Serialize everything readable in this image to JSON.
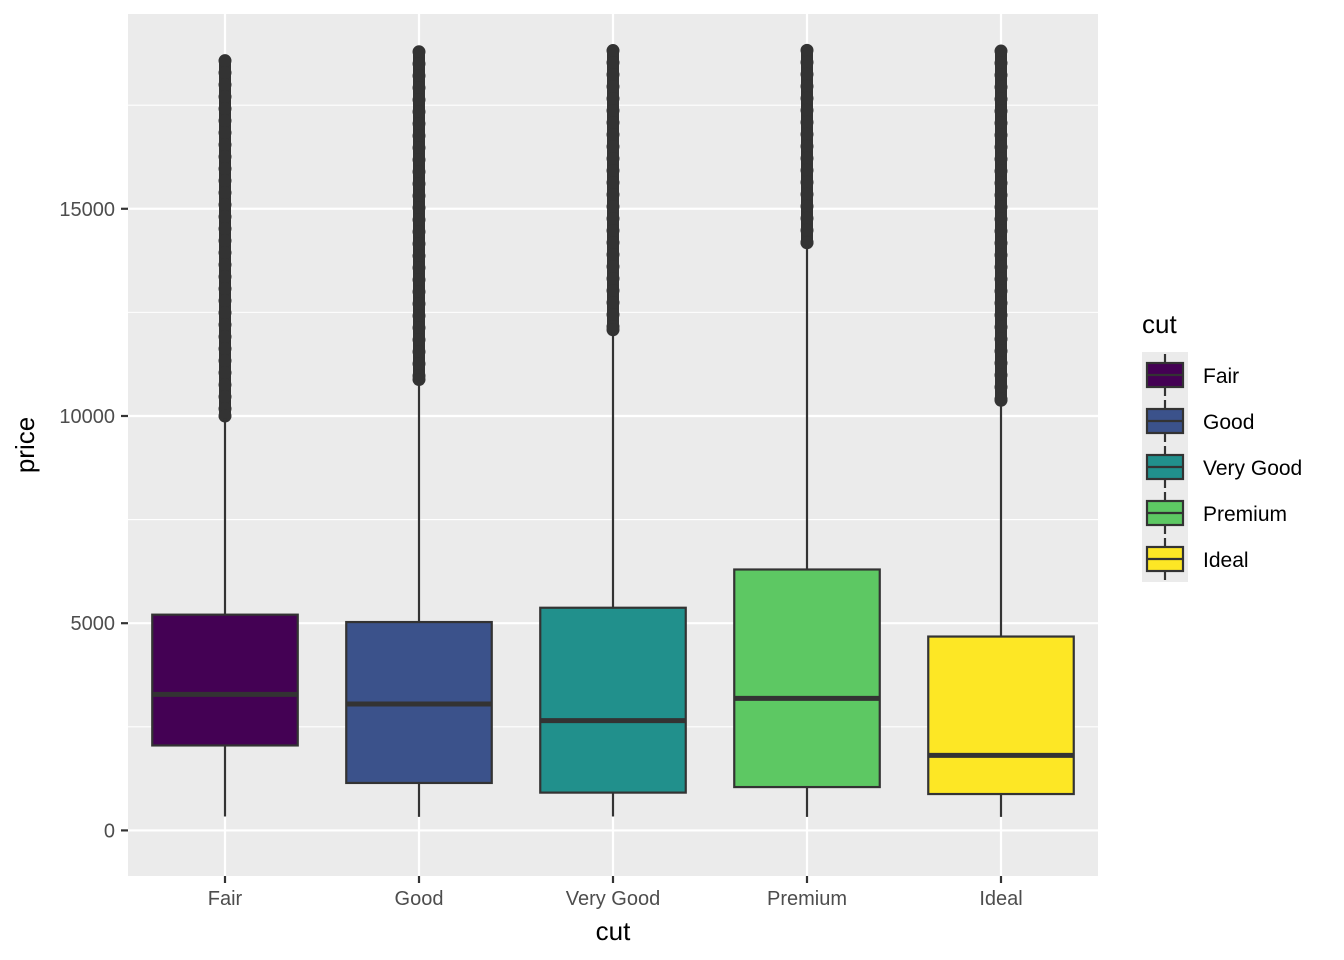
{
  "chart_data": {
    "type": "boxplot",
    "xlabel": "cut",
    "ylabel": "price",
    "ylim": [
      -1100,
      19700
    ],
    "yticks": [
      0,
      5000,
      10000,
      15000
    ],
    "ytick_labels": [
      "0",
      "5000",
      "10000",
      "15000"
    ],
    "grid": true,
    "legend": {
      "title": "cut",
      "placement": "right"
    },
    "categories": [
      "Fair",
      "Good",
      "Very Good",
      "Premium",
      "Ideal"
    ],
    "colors": [
      "#440154",
      "#3B528B",
      "#21908C",
      "#5DC863",
      "#FDE725"
    ],
    "boxes": [
      {
        "name": "Fair",
        "lower_whisker": 337,
        "q1": 2050,
        "median": 3282,
        "q3": 5206,
        "upper_whisker": 9950,
        "outlier_min": 10000,
        "outlier_max": 18574
      },
      {
        "name": "Good",
        "lower_whisker": 327,
        "q1": 1145,
        "median": 3050,
        "q3": 5028,
        "upper_whisker": 10850,
        "outlier_min": 10880,
        "outlier_max": 18788
      },
      {
        "name": "Very Good",
        "lower_whisker": 336,
        "q1": 912,
        "median": 2648,
        "q3": 5373,
        "upper_whisker": 12050,
        "outlier_min": 12080,
        "outlier_max": 18818
      },
      {
        "name": "Premium",
        "lower_whisker": 326,
        "q1": 1046,
        "median": 3185,
        "q3": 6296,
        "upper_whisker": 14150,
        "outlier_min": 14180,
        "outlier_max": 18823
      },
      {
        "name": "Ideal",
        "lower_whisker": 326,
        "q1": 878,
        "median": 1810,
        "q3": 4678,
        "upper_whisker": 10350,
        "outlier_min": 10380,
        "outlier_max": 18806
      }
    ]
  }
}
